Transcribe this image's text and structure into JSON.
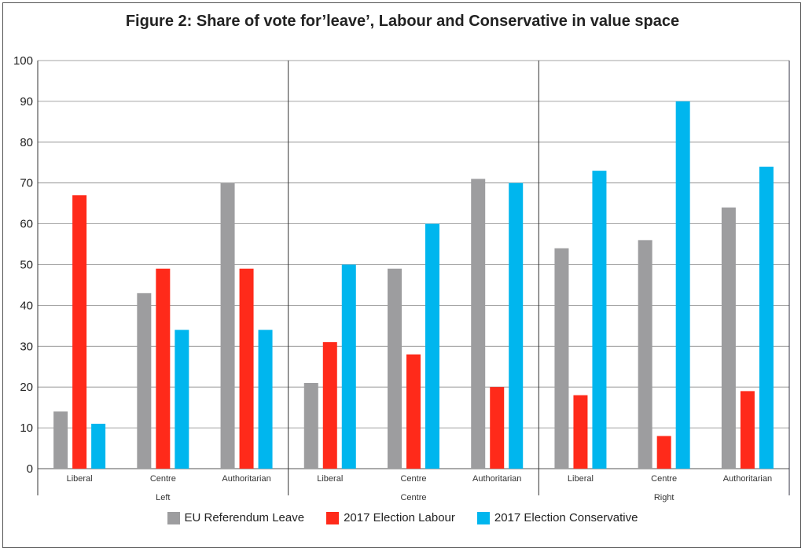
{
  "chart_data": {
    "type": "bar",
    "title": "Figure 2: Share of vote for’leave’, Labour and Conservative in value space",
    "groups": [
      "Left",
      "Centre",
      "Right"
    ],
    "subcategories": [
      "Liberal",
      "Centre",
      "Authoritarian"
    ],
    "ylim": [
      0,
      100
    ],
    "yticks": [
      0,
      10,
      20,
      30,
      40,
      50,
      60,
      70,
      80,
      90,
      100
    ],
    "grid": true,
    "legend_position": "bottom",
    "series": [
      {
        "name": "EU Referendum Leave",
        "color": "#9d9d9f",
        "values": [
          14,
          43,
          70,
          21,
          49,
          71,
          54,
          56,
          64
        ]
      },
      {
        "name": "2017 Election Labour",
        "color": "#ff2a1a",
        "values": [
          67,
          49,
          49,
          31,
          28,
          20,
          18,
          8,
          19
        ]
      },
      {
        "name": "2017 Election Conservative",
        "color": "#00b6ee",
        "values": [
          11,
          34,
          34,
          50,
          60,
          70,
          73,
          90,
          74
        ]
      }
    ]
  }
}
